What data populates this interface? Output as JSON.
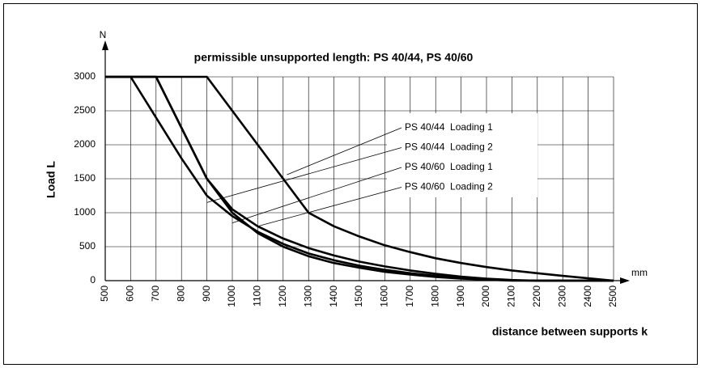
{
  "chart_data": {
    "type": "line",
    "title": "permissible unsupported length: PS 40/44, PS 40/60",
    "y_axis_label": "Load L",
    "y_unit": "N",
    "x_axis_label": "distance between supports k",
    "x_unit": "mm",
    "x": [
      500,
      600,
      700,
      800,
      900,
      1000,
      1100,
      1200,
      1300,
      1400,
      1500,
      1600,
      1700,
      1800,
      1900,
      2000,
      2100,
      2200,
      2300,
      2400,
      2500
    ],
    "series": [
      {
        "name": "PS 40/44  Loading 1",
        "color": "#000000",
        "values": [
          3000,
          3000,
          3000,
          3000,
          3000,
          2500,
          2000,
          1500,
          1000,
          800,
          650,
          520,
          420,
          330,
          260,
          200,
          150,
          110,
          70,
          35,
          0
        ]
      },
      {
        "name": "PS 40/44  Loading 2",
        "color": "#000000",
        "values": [
          3000,
          3000,
          3000,
          2250,
          1500,
          1050,
          800,
          620,
          480,
          370,
          280,
          210,
          150,
          100,
          60,
          30,
          10,
          0,
          0,
          0,
          0
        ]
      },
      {
        "name": "PS 40/60  Loading 1",
        "color": "#000000",
        "values": [
          3000,
          3000,
          2400,
          1800,
          1250,
          950,
          720,
          540,
          400,
          300,
          220,
          160,
          110,
          70,
          40,
          20,
          5,
          0,
          0,
          0,
          0
        ]
      },
      {
        "name": "PS 40/60  Loading 2",
        "color": "#000000",
        "values": [
          3000,
          3000,
          3000,
          2250,
          1500,
          1000,
          700,
          500,
          360,
          260,
          190,
          130,
          90,
          55,
          30,
          15,
          0,
          0,
          0,
          0,
          0
        ]
      }
    ],
    "xlim": [
      500,
      2500
    ],
    "ylim": [
      0,
      3000
    ],
    "xticks": [
      500,
      600,
      700,
      800,
      900,
      1000,
      1100,
      1200,
      1300,
      1400,
      1500,
      1600,
      1700,
      1800,
      1900,
      2000,
      2100,
      2200,
      2300,
      2400,
      2500
    ],
    "yticks": [
      0,
      500,
      1000,
      1500,
      2000,
      2500,
      3000
    ],
    "grid": true
  }
}
